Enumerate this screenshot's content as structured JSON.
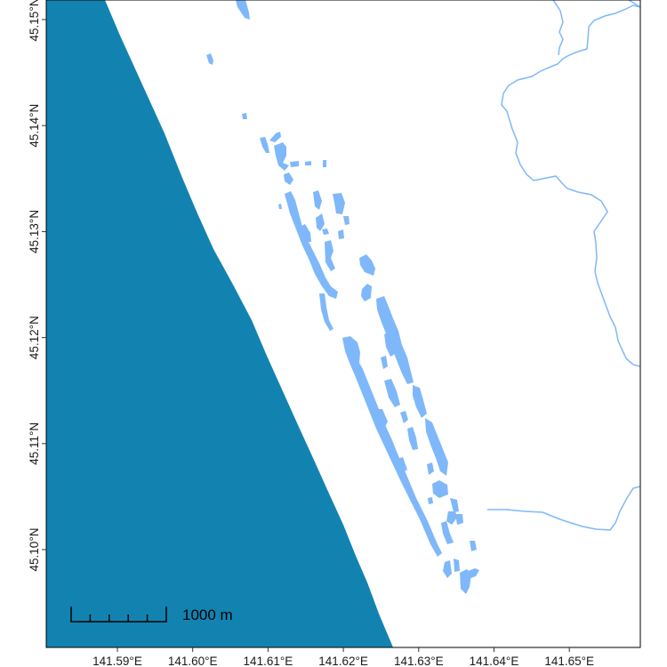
{
  "map": {
    "colors": {
      "sea": "#1283b1",
      "lakes": "#7fb8fa",
      "rivers": "#7fb8fa",
      "land": "#ffffff",
      "frame": "#000000"
    },
    "x_ticks": [
      {
        "value": 141.59,
        "label": "141.59°E"
      },
      {
        "value": 141.6,
        "label": "141.60°E"
      },
      {
        "value": 141.61,
        "label": "141.61°E"
      },
      {
        "value": 141.62,
        "label": "141.62°E"
      },
      {
        "value": 141.63,
        "label": "141.63°E"
      },
      {
        "value": 141.64,
        "label": "141.64°E"
      },
      {
        "value": 141.65,
        "label": "141.65°E"
      }
    ],
    "y_ticks": [
      {
        "value": 45.1,
        "label": "45.10°N"
      },
      {
        "value": 45.11,
        "label": "45.11°N"
      },
      {
        "value": 45.12,
        "label": "45.12°N"
      },
      {
        "value": 45.13,
        "label": "45.13°N"
      },
      {
        "value": 45.14,
        "label": "45.14°N"
      },
      {
        "value": 45.15,
        "label": "45.15°N"
      }
    ],
    "scale_bar": {
      "label": "1000 m",
      "length_m": 1000,
      "divisions": 5
    }
  }
}
